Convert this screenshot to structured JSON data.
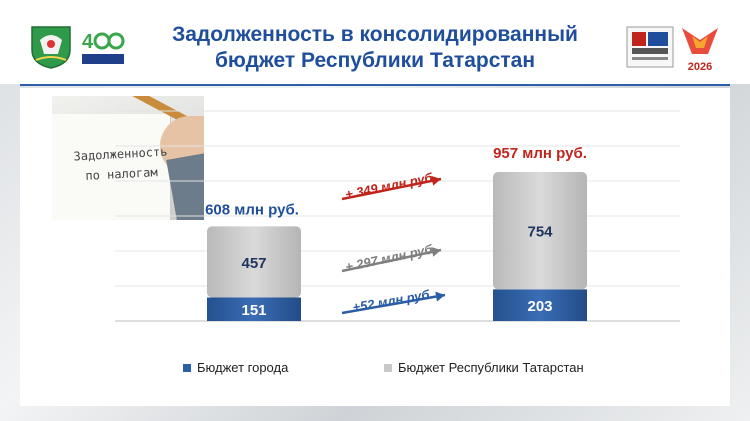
{
  "header": {
    "title_line1": "Задолженность в консолидированный",
    "title_line2": "бюджет Республики Татарстан",
    "logo_right_year": "2026"
  },
  "photo_caption_line1": "Задолженность",
  "photo_caption_line2": "по налогам",
  "chart_data": {
    "type": "bar",
    "stacked": true,
    "categories": [
      "",
      ""
    ],
    "series": [
      {
        "name": "Бюджет города",
        "values": [
          151,
          203
        ],
        "color": "#2b5ea6",
        "labels": [
          "151",
          "203"
        ]
      },
      {
        "name": "Бюджет Республики Татарстан",
        "values": [
          457,
          754
        ],
        "color": "#c8c8c8",
        "labels": [
          "457",
          "754"
        ]
      }
    ],
    "totals": [
      "608 млн руб.",
      "957 млн руб."
    ],
    "total_colors": [
      "#1f4f9c",
      "#c0251b"
    ],
    "changes": [
      {
        "label": "+ 349 млн руб.",
        "color": "#c0251b"
      },
      {
        "label": "+ 297 млн руб.",
        "color": "#7f7f7f"
      },
      {
        "label": "+52 млн руб.",
        "color": "#2b5ea6"
      }
    ],
    "ylim": [
      0,
      1400
    ],
    "grid": true,
    "legend_position": "bottom"
  },
  "legend": {
    "city": "Бюджет города",
    "republic": "Бюджет Республики Татарстан"
  }
}
